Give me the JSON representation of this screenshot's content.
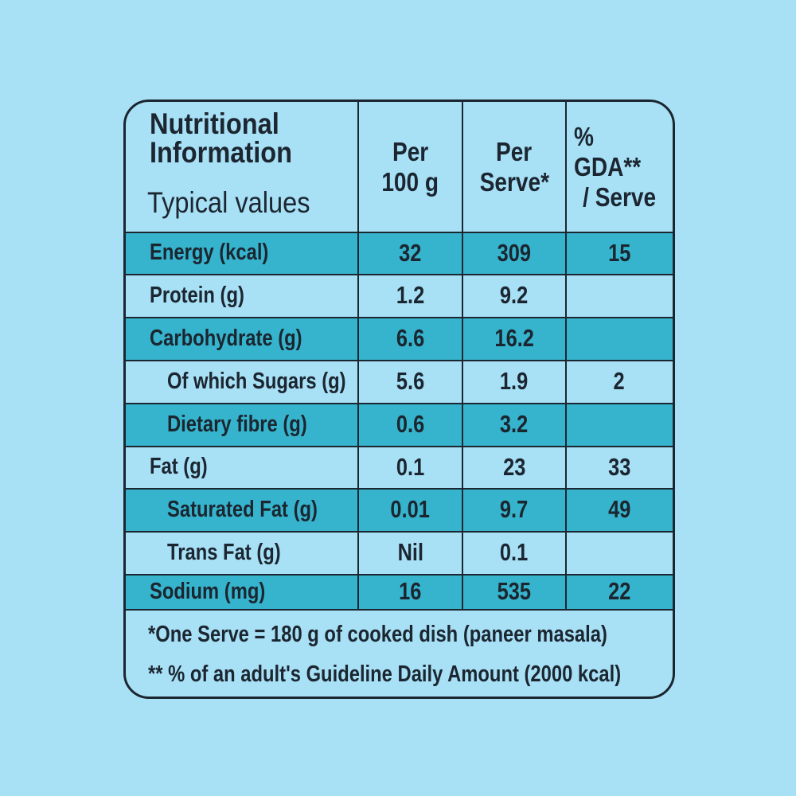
{
  "header": {
    "title_lines": [
      "Nutritional",
      "Information"
    ],
    "subtitle": "Typical values",
    "columns": [
      [
        "Per",
        "100 g"
      ],
      [
        "Per",
        "Serve*"
      ],
      [
        "% GDA**",
        "/ Serve"
      ]
    ]
  },
  "table": {
    "rows": [
      [
        "Energy (kcal)",
        "32",
        "309",
        "15"
      ],
      [
        "Protein (g)",
        "1.2",
        "9.2",
        null
      ],
      [
        "Carbohydrate (g)",
        "6.6",
        "16.2",
        null
      ],
      [
        "Of which Sugars (g)",
        "5.6",
        "1.9",
        "2"
      ],
      [
        "Dietary fibre (g)",
        "0.6",
        "3.2",
        null
      ],
      [
        "Fat (g)",
        "0.1",
        "23",
        "33"
      ],
      [
        "Saturated Fat (g)",
        "0.01",
        "9.7",
        "49"
      ],
      [
        "Trans Fat (g)",
        "Nil",
        "0.1",
        null
      ],
      [
        "Sodium (mg)",
        "16",
        "535",
        "22"
      ]
    ]
  },
  "footnotes": [
    "*One Serve = 180 g of cooked dish (paneer masala)",
    "** % of an adult's Guideline Daily Amount (2000 kcal)"
  ]
}
